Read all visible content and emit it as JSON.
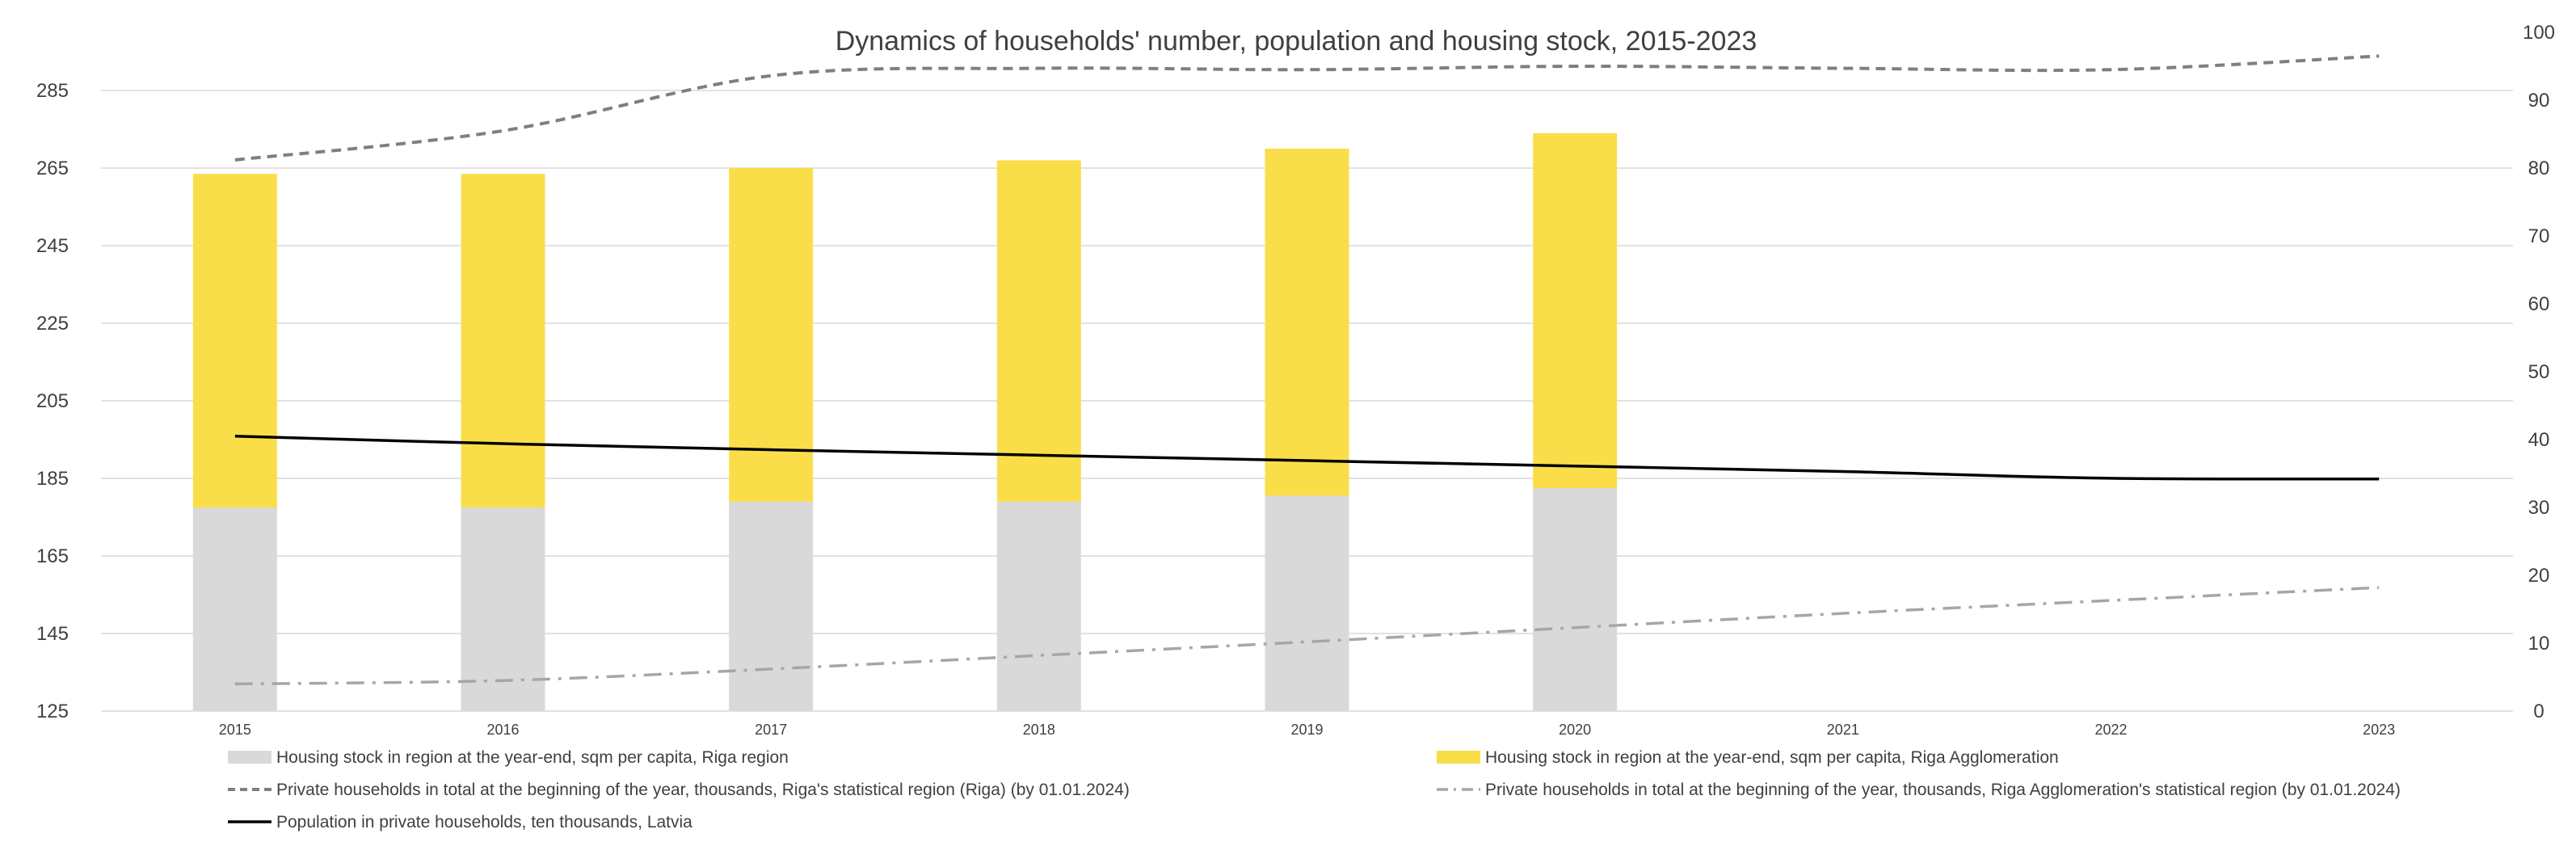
{
  "chart_data": {
    "type": "bar",
    "title": "Dynamics of households' number, population and housing stock, 2015-2023",
    "categories": [
      "2015",
      "2016",
      "2017",
      "2018",
      "2019",
      "2020",
      "2021",
      "2022",
      "2023"
    ],
    "axes": {
      "left": {
        "ylim": [
          125,
          300
        ],
        "ticks": [
          125,
          145,
          165,
          185,
          205,
          225,
          245,
          265,
          285
        ]
      },
      "right": {
        "ylim": [
          0,
          100
        ],
        "ticks": [
          0,
          10,
          20,
          30,
          40,
          50,
          60,
          70,
          80,
          90,
          100
        ]
      }
    },
    "grid": true,
    "legend_position": "bottom",
    "series": [
      {
        "key": "riga_region_stock",
        "name": "Housing stock in region at the year-end, sqm per capita, Riga region",
        "kind": "stacked-bar",
        "axis": "left",
        "color": "#d9d9d9",
        "values": [
          177.5,
          177.5,
          179,
          179,
          180.5,
          182.5,
          null,
          null,
          null
        ]
      },
      {
        "key": "riga_agglomeration_stock",
        "name": "Housing stock in region at the year-end, sqm per capita, Riga Agglomeration",
        "kind": "stacked-bar",
        "axis": "left",
        "color": "#f9de4a",
        "values": [
          263.5,
          263.5,
          265,
          267,
          270,
          274,
          null,
          null,
          null
        ]
      },
      {
        "key": "riga_households",
        "name": "Private households in total at the beginning of the year, thousands, Riga's statistical region (Riga) (by 01.01.2024)",
        "kind": "line",
        "style": "dashed",
        "axis": "right",
        "color": "#7f7f7f",
        "values": [
          81.2,
          85.5,
          93.6,
          94.7,
          94.5,
          95.0,
          94.7,
          94.5,
          96.5
        ]
      },
      {
        "key": "agglomeration_households",
        "name": "Private households in total at the beginning of the year, thousands, Riga Agglomeration's statistical region (by 01.01.2024)",
        "kind": "line",
        "style": "dash-dot",
        "axis": "right",
        "color": "#a6a6a6",
        "values": [
          4.0,
          4.5,
          6.2,
          8.2,
          10.2,
          12.3,
          14.4,
          16.3,
          18.2
        ]
      },
      {
        "key": "population",
        "name": "Population in private households, ten thousands, Latvia",
        "kind": "line",
        "style": "solid",
        "axis": "right",
        "color": "#000000",
        "values": [
          40.5,
          39.4,
          38.5,
          37.7,
          36.9,
          36.1,
          35.3,
          34.3,
          34.2
        ]
      }
    ]
  }
}
